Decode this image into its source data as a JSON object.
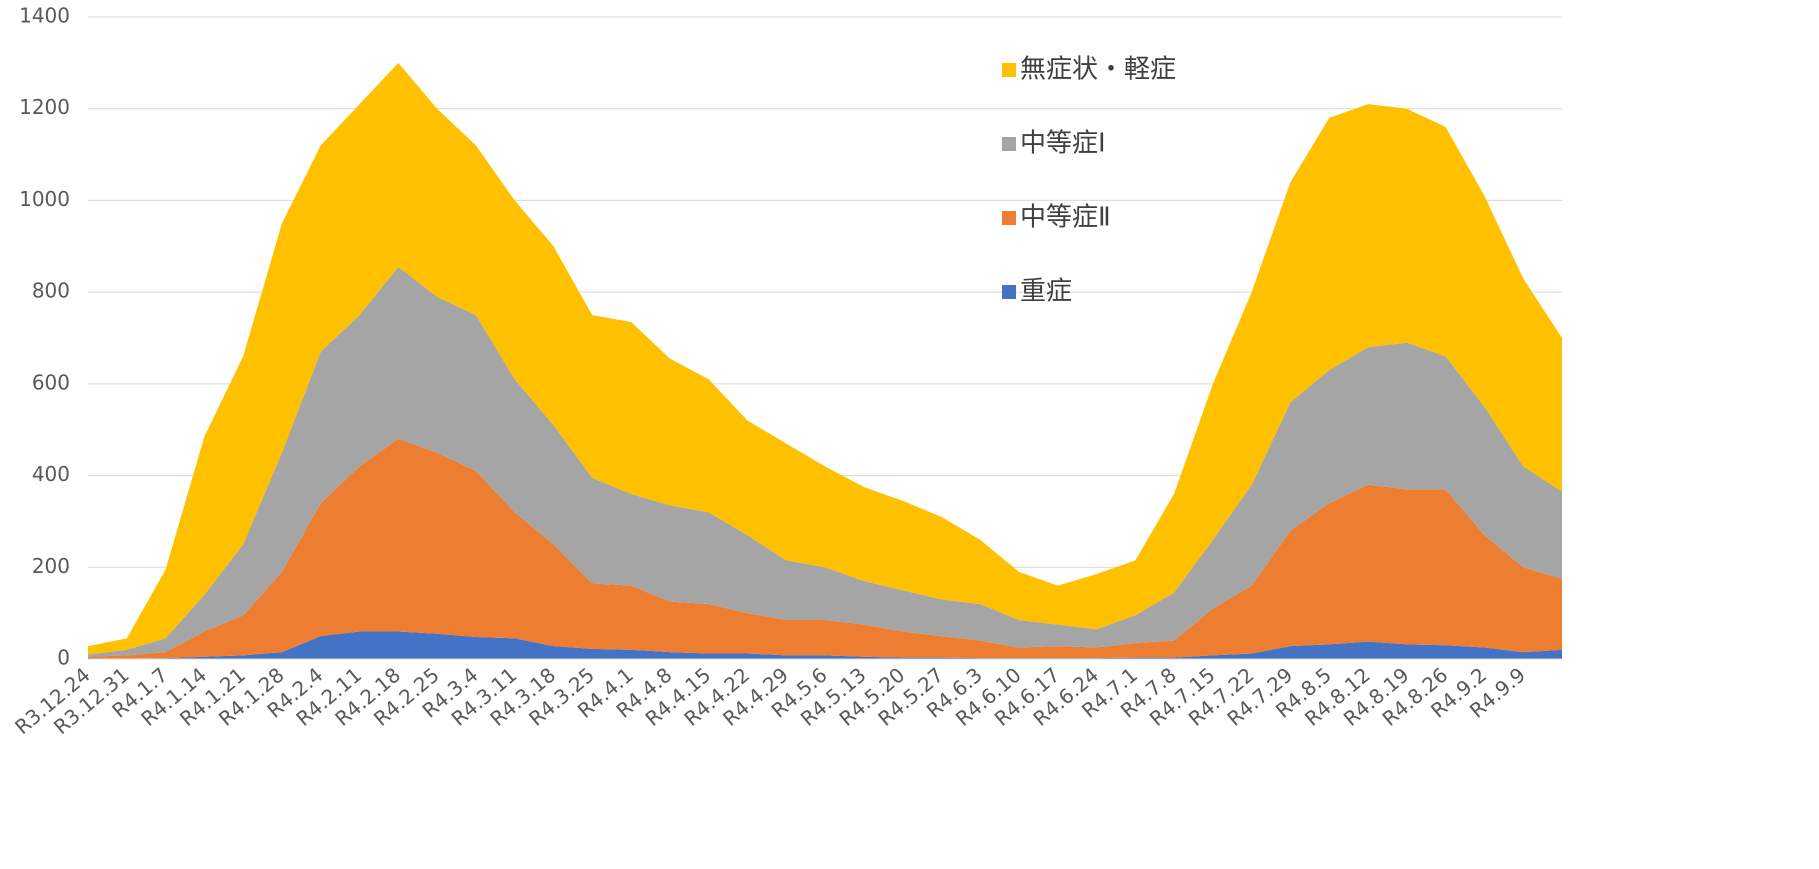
{
  "chart_data": {
    "type": "stacked_area",
    "categories": [
      "R3.12.24",
      "R3.12.31",
      "R4.1.7",
      "R4.1.14",
      "R4.1.21",
      "R4.1.28",
      "R4.2.4",
      "R4.2.11",
      "R4.2.18",
      "R4.2.25",
      "R4.3.4",
      "R4.3.11",
      "R4.3.18",
      "R4.3.25",
      "R4.4.1",
      "R4.4.8",
      "R4.4.15",
      "R4.4.22",
      "R4.4.29",
      "R4.5.6",
      "R4.5.13",
      "R4.5.20",
      "R4.5.27",
      "R4.6.3",
      "R4.6.10",
      "R4.6.17",
      "R4.6.24",
      "R4.7.1",
      "R4.7.8",
      "R4.7.15",
      "R4.7.22",
      "R4.7.29",
      "R4.8.5",
      "R4.8.12",
      "R4.8.19",
      "R4.8.26",
      "R4.9.2",
      "R4.9.9",
      null
    ],
    "series": [
      {
        "name": "重症",
        "color": "#4472c4",
        "values": [
          2,
          1,
          2,
          5,
          8,
          15,
          50,
          60,
          60,
          55,
          48,
          45,
          28,
          22,
          20,
          15,
          12,
          12,
          8,
          8,
          5,
          3,
          3,
          2,
          2,
          2,
          2,
          3,
          3,
          8,
          12,
          28,
          32,
          38,
          32,
          30,
          25,
          15,
          20
        ]
      },
      {
        "name": "中等症Ⅱ",
        "color": "#ed7d31",
        "values": [
          3,
          7,
          13,
          55,
          87,
          175,
          290,
          360,
          420,
          395,
          362,
          275,
          222,
          143,
          140,
          110,
          108,
          88,
          77,
          77,
          70,
          57,
          47,
          38,
          23,
          26,
          23,
          32,
          37,
          102,
          148,
          252,
          308,
          342,
          338,
          340,
          245,
          185,
          155
        ]
      },
      {
        "name": "中等症Ⅰ",
        "color": "#a5a5a5",
        "values": [
          5,
          12,
          30,
          80,
          155,
          260,
          330,
          330,
          375,
          340,
          340,
          290,
          260,
          230,
          200,
          210,
          200,
          170,
          130,
          115,
          95,
          90,
          80,
          80,
          60,
          47,
          40,
          60,
          105,
          150,
          220,
          280,
          290,
          300,
          320,
          290,
          280,
          220,
          190
        ]
      },
      {
        "name": "無症状・軽症",
        "color": "#ffc000",
        "values": [
          18,
          25,
          150,
          345,
          410,
          500,
          450,
          460,
          445,
          410,
          370,
          390,
          390,
          355,
          375,
          320,
          290,
          250,
          255,
          220,
          205,
          195,
          180,
          140,
          105,
          85,
          120,
          120,
          215,
          340,
          420,
          480,
          550,
          530,
          510,
          500,
          460,
          410,
          335
        ]
      }
    ],
    "ylim": [
      0,
      1400
    ],
    "yticks": [
      0,
      200,
      400,
      600,
      800,
      1000,
      1200,
      1400
    ],
    "grid": true
  }
}
